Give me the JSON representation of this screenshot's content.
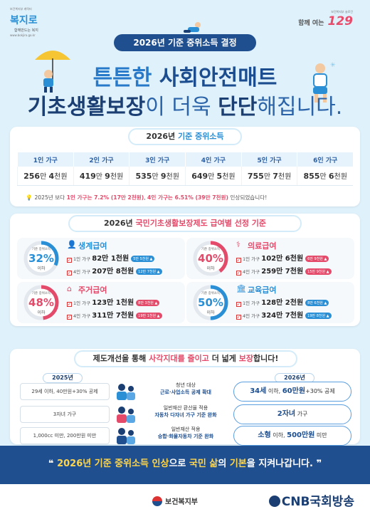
{
  "header": {
    "left_logo_mini": "보건복지부 캐릭터",
    "left_logo_brand": "복지로",
    "left_logo_tag": "함께만드는 복지",
    "left_logo_url": "www.bokjiro.go.kr",
    "right_logo_mini": "보건복지부 슬로건",
    "right_logo_text": "함께 여는",
    "right_logo_num": "129",
    "year_pill": "2026년 기준 중위소득 결정",
    "headline1_a": "튼튼한 ",
    "headline1_b": "사회안전매트",
    "headline2_a": "기초생활보장",
    "headline2_b": "이 더욱 ",
    "headline2_c": "단단",
    "headline2_d": "해집니다."
  },
  "income": {
    "title_a": "2026년 ",
    "title_b": "기준 중위소득",
    "columns": [
      "1인 가구",
      "2인 가구",
      "3인 가구",
      "4인 가구",
      "5인 가구",
      "6인 가구"
    ],
    "values": [
      {
        "man": "256",
        "cheon": "4"
      },
      {
        "man": "419",
        "cheon": "9"
      },
      {
        "man": "535",
        "cheon": "9"
      },
      {
        "man": "649",
        "cheon": "5"
      },
      {
        "man": "755",
        "cheon": "7"
      },
      {
        "man": "855",
        "cheon": "6"
      }
    ],
    "unit_man": "만 ",
    "unit_cheon": "천원",
    "note_a": "2025년 보다 ",
    "note_b": "1인 가구는 7.2% (17만 2천원)",
    "note_c": ", ",
    "note_d": "4인 가구는 6.51% (39만 7천원)",
    "note_e": " 인상되었습니다!"
  },
  "benefits": {
    "title_a": "2026년 ",
    "title_b": "국민기초생활보장제도 급여별 선정 기준",
    "ring_label": "기준 중위소득",
    "ring_suffix": "이하",
    "row1_label": "1인 가구",
    "row4_label": "4인 가구",
    "items": [
      {
        "name": "생계급여",
        "pct": "32%",
        "color": "#2b8fd6",
        "r1": "82만 1천원",
        "t1": "5만 5천원",
        "r4": "207만 8천원",
        "t4": "12만 7천원",
        "pct_value": 32
      },
      {
        "name": "의료급여",
        "pct": "40%",
        "color": "#e44a6a",
        "r1": "102만 6천원",
        "t1": "6만 9천원",
        "r4": "259만 7천원",
        "t4": "15만 9천원",
        "pct_value": 40
      },
      {
        "name": "주거급여",
        "pct": "48%",
        "color": "#e44a6a",
        "r1": "123만 1천원",
        "t1": "8만 3천원",
        "r4": "311만 7천원",
        "t4": "19만 1천원",
        "pct_value": 48
      },
      {
        "name": "교육급여",
        "pct": "50%",
        "color": "#2b8fd6",
        "r1": "128만 2천원",
        "t1": "8만 6천원",
        "r4": "324만 7천원",
        "t4": "19만 8천원",
        "pct_value": 50
      }
    ]
  },
  "reform": {
    "title_a": "제도개선을 통해 ",
    "title_b": "사각지대를 줄이고",
    "title_c": " 더 넓게 ",
    "title_d": "보장",
    "title_e": "합니다!",
    "old_year": "2025년",
    "new_year": "2026년",
    "rows": [
      {
        "old": "29세 이하, 40만원+30% 공제",
        "mid1": "청년 대상",
        "mid2": "근로·사업소득 공제 확대",
        "new_big1": "34세",
        "new_small1": " 이하, ",
        "new_big2": "60만원",
        "new_small2": "+30% 공제"
      },
      {
        "old": "3자녀 가구",
        "mid1": "일반재산 환산율 적용",
        "mid2": "자동차 다자녀 가구 기준 완화",
        "new_big1": "2자녀",
        "new_small1": " 가구",
        "new_big2": "",
        "new_small2": ""
      },
      {
        "old": "1,000cc 미만, 200만원 미만",
        "mid1": "일반재산 적용",
        "mid2": "승합·화물자동차 기준 완화",
        "new_big1": "소형",
        "new_small1": " 이하, ",
        "new_big2": "500만원",
        "new_small2": " 미만"
      }
    ]
  },
  "footer": {
    "msg_a": "2026년 기준 중위소득 인상",
    "msg_b": "으로 ",
    "msg_c": "국민 삶",
    "msg_d": "의 ",
    "msg_e": "기본",
    "msg_f": "을 지켜나갑니다.",
    "ministry": "보건복지부",
    "broadcaster": "CNB국회방송"
  },
  "colors": {
    "navy": "#1f4f8f",
    "blue": "#2b8fd6",
    "red": "#e44a6a",
    "sky": "#dff1fb"
  }
}
